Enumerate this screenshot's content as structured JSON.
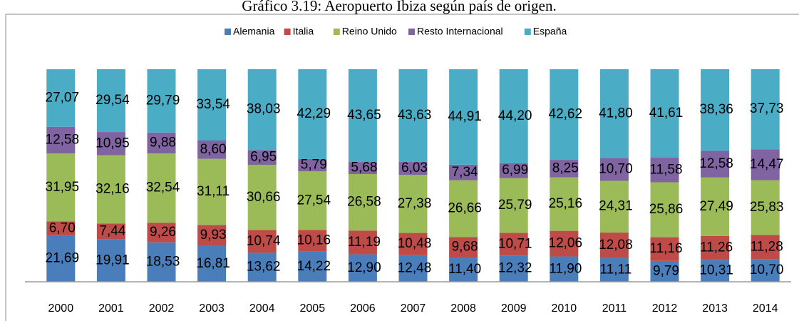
{
  "chart_data": {
    "type": "stacked_bar",
    "title": "Gráfico 3.19: Aeropuerto Ibiza según país de origen.",
    "categories": [
      "2000",
      "2001",
      "2002",
      "2003",
      "2004",
      "2005",
      "2006",
      "2007",
      "2008",
      "2009",
      "2010",
      "2011",
      "2012",
      "2013",
      "2014"
    ],
    "series": [
      {
        "name": "Alemania",
        "color": "#4a7ebb",
        "values": [
          21.69,
          19.91,
          18.53,
          16.81,
          13.62,
          14.22,
          12.9,
          12.48,
          11.4,
          12.32,
          11.9,
          11.11,
          9.79,
          10.31,
          10.7
        ],
        "value_labels": [
          "21,69",
          "19,91",
          "18,53",
          "16,81",
          "13,62",
          "14,22",
          "12,90",
          "12,48",
          "11,40",
          "12,32",
          "11,90",
          "11,11",
          "9,79",
          "10,31",
          "10,70"
        ]
      },
      {
        "name": "Italia",
        "color": "#be4b48",
        "values": [
          6.7,
          7.44,
          9.26,
          9.93,
          10.74,
          10.16,
          11.19,
          10.48,
          9.68,
          10.71,
          12.06,
          12.08,
          11.16,
          11.26,
          11.28
        ],
        "value_labels": [
          "6,70",
          "7,44",
          "9,26",
          "9,93",
          "10,74",
          "10,16",
          "11,19",
          "10,48",
          "9,68",
          "10,71",
          "12,06",
          "12,08",
          "11,16",
          "11,26",
          "11,28"
        ]
      },
      {
        "name": "Reino Unido",
        "color": "#9bbb59",
        "values": [
          31.95,
          32.16,
          32.54,
          31.11,
          30.66,
          27.54,
          26.58,
          27.38,
          26.66,
          25.79,
          25.16,
          24.31,
          25.86,
          27.49,
          25.83
        ],
        "value_labels": [
          "31,95",
          "32,16",
          "32,54",
          "31,11",
          "30,66",
          "27,54",
          "26,58",
          "27,38",
          "26,66",
          "25,79",
          "25,16",
          "24,31",
          "25,86",
          "27,49",
          "25,83"
        ]
      },
      {
        "name": "Resto Internacional",
        "color": "#8064a2",
        "values": [
          12.58,
          10.95,
          9.88,
          8.6,
          6.95,
          5.79,
          5.68,
          6.03,
          7.34,
          6.99,
          8.25,
          10.7,
          11.58,
          12.58,
          14.47
        ],
        "value_labels": [
          "12,58",
          "10,95",
          "9,88",
          "8,60",
          "6,95",
          "5,79",
          "5,68",
          "6,03",
          "7,34",
          "6,99",
          "8,25",
          "10,70",
          "11,58",
          "12,58",
          "14,47"
        ]
      },
      {
        "name": "España",
        "color": "#4bacc6",
        "values": [
          27.07,
          29.54,
          29.79,
          33.54,
          38.03,
          42.29,
          43.65,
          43.63,
          44.91,
          44.2,
          42.62,
          41.8,
          41.61,
          38.36,
          37.73
        ],
        "value_labels": [
          "27,07",
          "29,54",
          "29,79",
          "33,54",
          "38,03",
          "42,29",
          "43,65",
          "43,63",
          "44,91",
          "44,20",
          "42,62",
          "41,80",
          "41,61",
          "38,36",
          "37,73"
        ]
      }
    ],
    "legend": "top"
  }
}
